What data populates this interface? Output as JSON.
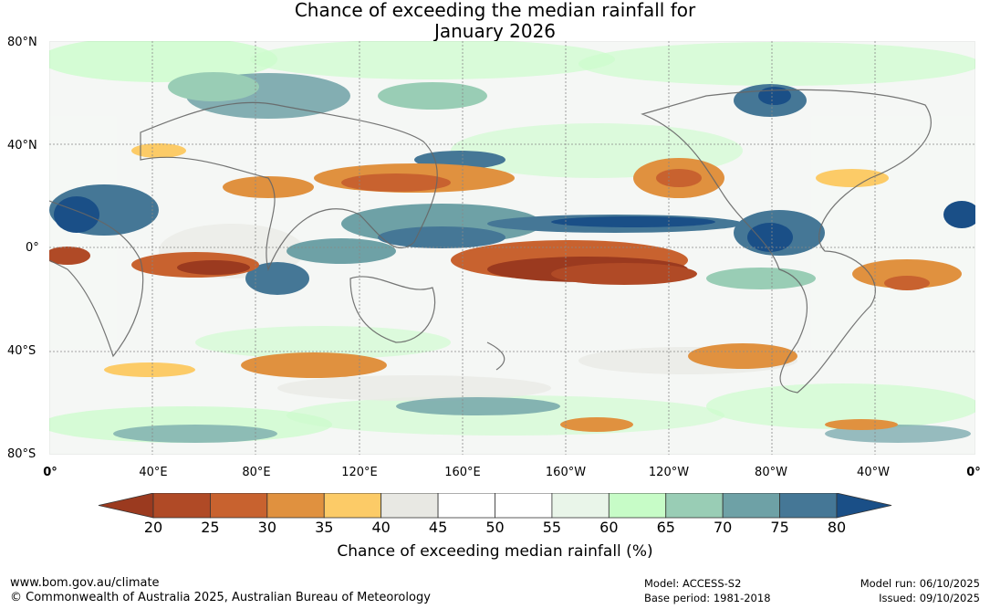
{
  "title": {
    "line1": "Chance of exceeding the median rainfall for",
    "line2": "January 2026"
  },
  "latitude_labels": [
    "80°N",
    "40°N",
    "0°",
    "40°S",
    "80°S"
  ],
  "longitude_labels": [
    "0°",
    "40°E",
    "80°E",
    "120°E",
    "160°E",
    "160°W",
    "120°W",
    "80°W",
    "40°W",
    "0°"
  ],
  "colorbar": {
    "ticks": [
      "20",
      "25",
      "30",
      "35",
      "40",
      "45",
      "50",
      "55",
      "60",
      "65",
      "70",
      "75",
      "80"
    ],
    "colors": {
      "under": "#9b3a1f",
      "bins": [
        "#b04a26",
        "#c8622f",
        "#e0913f",
        "#fccb67",
        "#e8e8e3",
        "#ffffff",
        "#ffffff",
        "#e9f5e9",
        "#c7fcc7",
        "#99cdb5",
        "#6ea1a6",
        "#457796"
      ],
      "over": "#1a4f87"
    },
    "label": "Chance of exceeding median rainfall (%)"
  },
  "footer": {
    "website": "www.bom.gov.au/climate",
    "copyright": "© Commonwealth of Australia 2025, Australian Bureau of Meteorology",
    "model": "Model: ACCESS-S2",
    "base_period": "Base period: 1981-2018",
    "model_run": "Model run: 06/10/2025",
    "issued": "Issued: 09/10/2025"
  }
}
